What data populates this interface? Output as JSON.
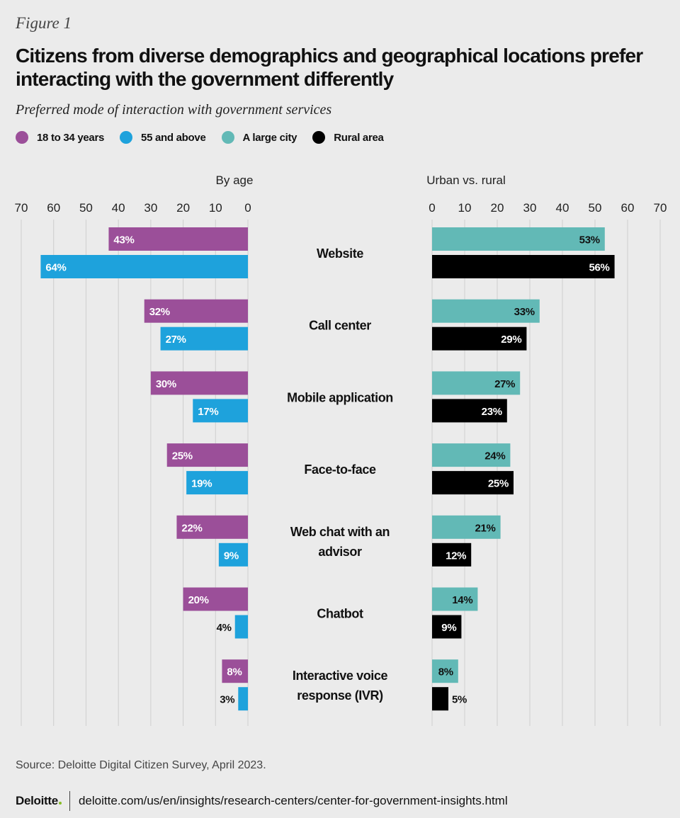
{
  "figure_label": "Figure 1",
  "title": "Citizens from diverse demographics and geographical locations prefer interacting with the government differently",
  "subtitle": "Preferred mode of interaction with government services",
  "legend": [
    {
      "label": "18 to 34 years",
      "color": "#9b4f99"
    },
    {
      "label": "55 and above",
      "color": "#1ea2dc"
    },
    {
      "label": "A large city",
      "color": "#62b9b6"
    },
    {
      "label": "Rural area",
      "color": "#000000"
    }
  ],
  "chart_data": {
    "type": "bar",
    "orientation": "horizontal",
    "layout": "butterfly",
    "categories": [
      "Website",
      "Call center",
      "Mobile application",
      "Face-to-face",
      "Web chat with an advisor",
      "Chatbot",
      "Interactive voice response (IVR)"
    ],
    "panels": [
      {
        "title": "By age",
        "direction": "left",
        "xlim": [
          0,
          70
        ],
        "ticks": [
          0,
          10,
          20,
          30,
          40,
          50,
          60,
          70
        ],
        "series": [
          {
            "name": "18 to 34 years",
            "color": "#9b4f99",
            "values": [
              43,
              32,
              30,
              25,
              22,
              20,
              8
            ]
          },
          {
            "name": "55 and above",
            "color": "#1ea2dc",
            "values": [
              64,
              27,
              17,
              19,
              9,
              4,
              3
            ]
          }
        ]
      },
      {
        "title": "Urban vs. rural",
        "direction": "right",
        "xlim": [
          0,
          70
        ],
        "ticks": [
          0,
          10,
          20,
          30,
          40,
          50,
          60,
          70
        ],
        "series": [
          {
            "name": "A large city",
            "color": "#62b9b6",
            "values": [
              53,
              33,
              27,
              24,
              21,
              14,
              8
            ]
          },
          {
            "name": "Rural area",
            "color": "#000000",
            "values": [
              56,
              29,
              23,
              25,
              12,
              9,
              5
            ]
          }
        ]
      }
    ],
    "value_suffix": "%",
    "grid": true
  },
  "source": "Source: Deloitte Digital Citizen Survey, April 2023.",
  "footer": {
    "brand": "Deloitte",
    "url": "deloitte.com/us/en/insights/research-centers/center-for-government-insights.html"
  }
}
